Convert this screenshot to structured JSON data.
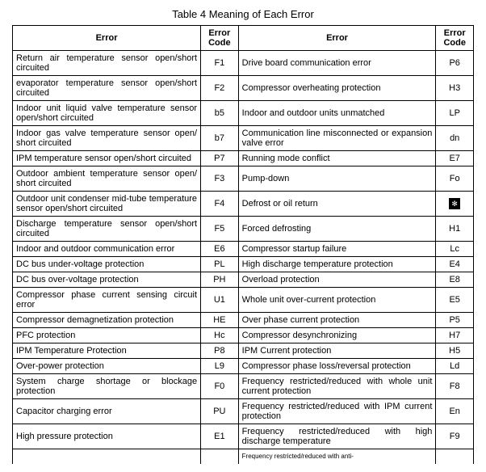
{
  "title": "Table 4 Meaning of Each Error",
  "headers": {
    "error_left": "Error",
    "code_left": "Error Code",
    "error_right": "Error",
    "code_right": "Error Code"
  },
  "rows": [
    {
      "el": "Return air temperature sensor open/short circuited",
      "cl": "F1",
      "er": "Drive board communication error",
      "cr": "P6"
    },
    {
      "el": "evaporator temperature sensor open/short circuited",
      "cl": "F2",
      "er": "Compressor overheating protection",
      "cr": "H3"
    },
    {
      "el": "Indoor unit liquid valve temperature sensor open/short circuited",
      "cl": "b5",
      "er": "Indoor and outdoor units unmatched",
      "cr": "LP"
    },
    {
      "el": "Indoor gas valve temperature sensor open/ short circuited",
      "cl": "b7",
      "er": "Communication line misconnected or expansion valve error",
      "cr": "dn"
    },
    {
      "el": "IPM temperature sensor open/short circuited",
      "cl": "P7",
      "er": "Running mode conflict",
      "cr": "E7"
    },
    {
      "el": "Outdoor ambient temperature sensor open/ short circuited",
      "cl": "F3",
      "er": "Pump-down",
      "cr": "Fo"
    },
    {
      "el": "Outdoor unit condenser mid-tube temperature sensor open/short circuited",
      "cl": "F4",
      "er": "Defrost or oil return",
      "cr": "SYMBOL"
    },
    {
      "el": "Discharge temperature sensor open/short circuited",
      "cl": "F5",
      "er": "Forced defrosting",
      "cr": "H1"
    },
    {
      "el": "Indoor and outdoor communication error",
      "cl": "E6",
      "er": "Compressor startup failure",
      "cr": "Lc"
    },
    {
      "el": "DC bus under-voltage protection",
      "cl": "PL",
      "er": "High discharge temperature protection",
      "cr": "E4"
    },
    {
      "el": "DC bus over-voltage protection",
      "cl": "PH",
      "er": "Overload protection",
      "cr": "E8"
    },
    {
      "el": "Compressor phase current sensing circuit error",
      "cl": "U1",
      "er": "Whole unit over-current protection",
      "cr": "E5"
    },
    {
      "el": "Compressor demagnetization protection",
      "cl": "HE",
      "er": "Over phase current protection",
      "cr": "P5"
    },
    {
      "el": "PFC protection",
      "cl": "Hc",
      "er": "Compressor desynchronizing",
      "cr": "H7"
    },
    {
      "el": "IPM Temperature Protection",
      "cl": "P8",
      "er": "IPM Current protection",
      "cr": "H5"
    },
    {
      "el": "Over-power protection",
      "cl": "L9",
      "er": "Compressor phase loss/reversal protection",
      "cr": "Ld"
    },
    {
      "el": "System charge shortage or blockage protection",
      "cl": "F0",
      "er": "Frequency restricted/reduced with whole unit current protection",
      "cr": "F8"
    },
    {
      "el": "Capacitor charging error",
      "cl": "PU",
      "er": "Frequency restricted/reduced with IPM current protection",
      "cr": "En"
    },
    {
      "el": "High pressure protection",
      "cl": "E1",
      "er": "Frequency restricted/reduced with high discharge temperature",
      "cr": "F9"
    }
  ],
  "partial_row": "Frequency restricted/reduced with anti-"
}
